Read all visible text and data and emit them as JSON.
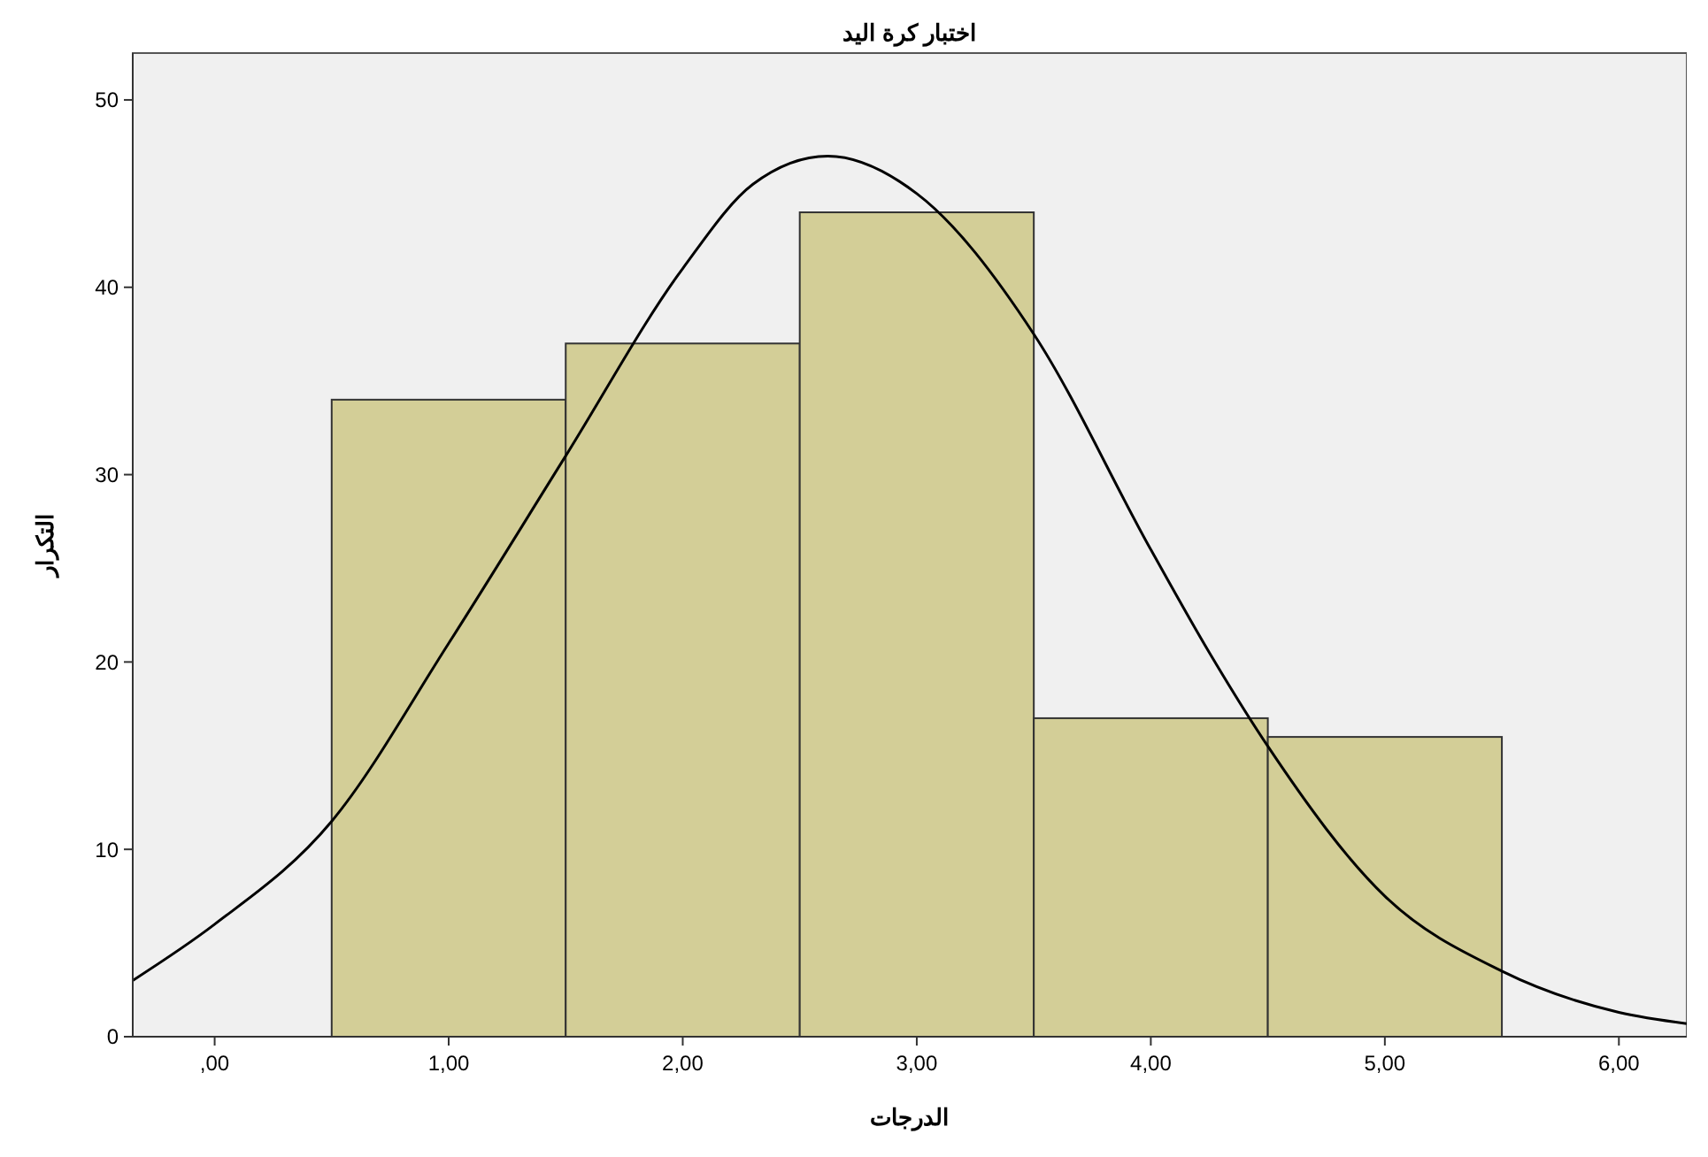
{
  "chart_data": {
    "type": "histogram",
    "title": "اختبار كرة اليد",
    "xlabel": "الدرجات",
    "ylabel": "التكرار",
    "bins": [
      0.5,
      1.5,
      2.5,
      3.5,
      4.5,
      5.5
    ],
    "values": [
      34,
      37,
      44,
      17,
      16
    ],
    "color": "#d3ce97",
    "series": [
      {
        "type": "line",
        "color": "#000000",
        "x": [
          -0.35,
          0,
          0.5,
          1,
          1.5,
          2,
          2.3,
          2.62,
          3,
          3.5,
          4,
          4.25,
          4.5,
          5,
          5.5,
          6,
          6.29
        ],
        "values": [
          3,
          6,
          11.5,
          21,
          31,
          41,
          45.5,
          47,
          45,
          37.5,
          26,
          20.5,
          15.5,
          7.5,
          3.5,
          1.3,
          0.7
        ]
      }
    ],
    "xlim": [
      -0.35,
      6.29
    ],
    "ylim": [
      0,
      52.5
    ],
    "xticks": [
      {
        "value": 0,
        "label": ",00"
      },
      {
        "value": 1,
        "label": "1,00"
      },
      {
        "value": 2,
        "label": "2,00"
      },
      {
        "value": 3,
        "label": "3,00"
      },
      {
        "value": 4,
        "label": "4,00"
      },
      {
        "value": 5,
        "label": "5,00"
      },
      {
        "value": 6,
        "label": "6,00"
      }
    ],
    "yticks": [
      0,
      10,
      20,
      30,
      40,
      50
    ],
    "grid": false
  }
}
